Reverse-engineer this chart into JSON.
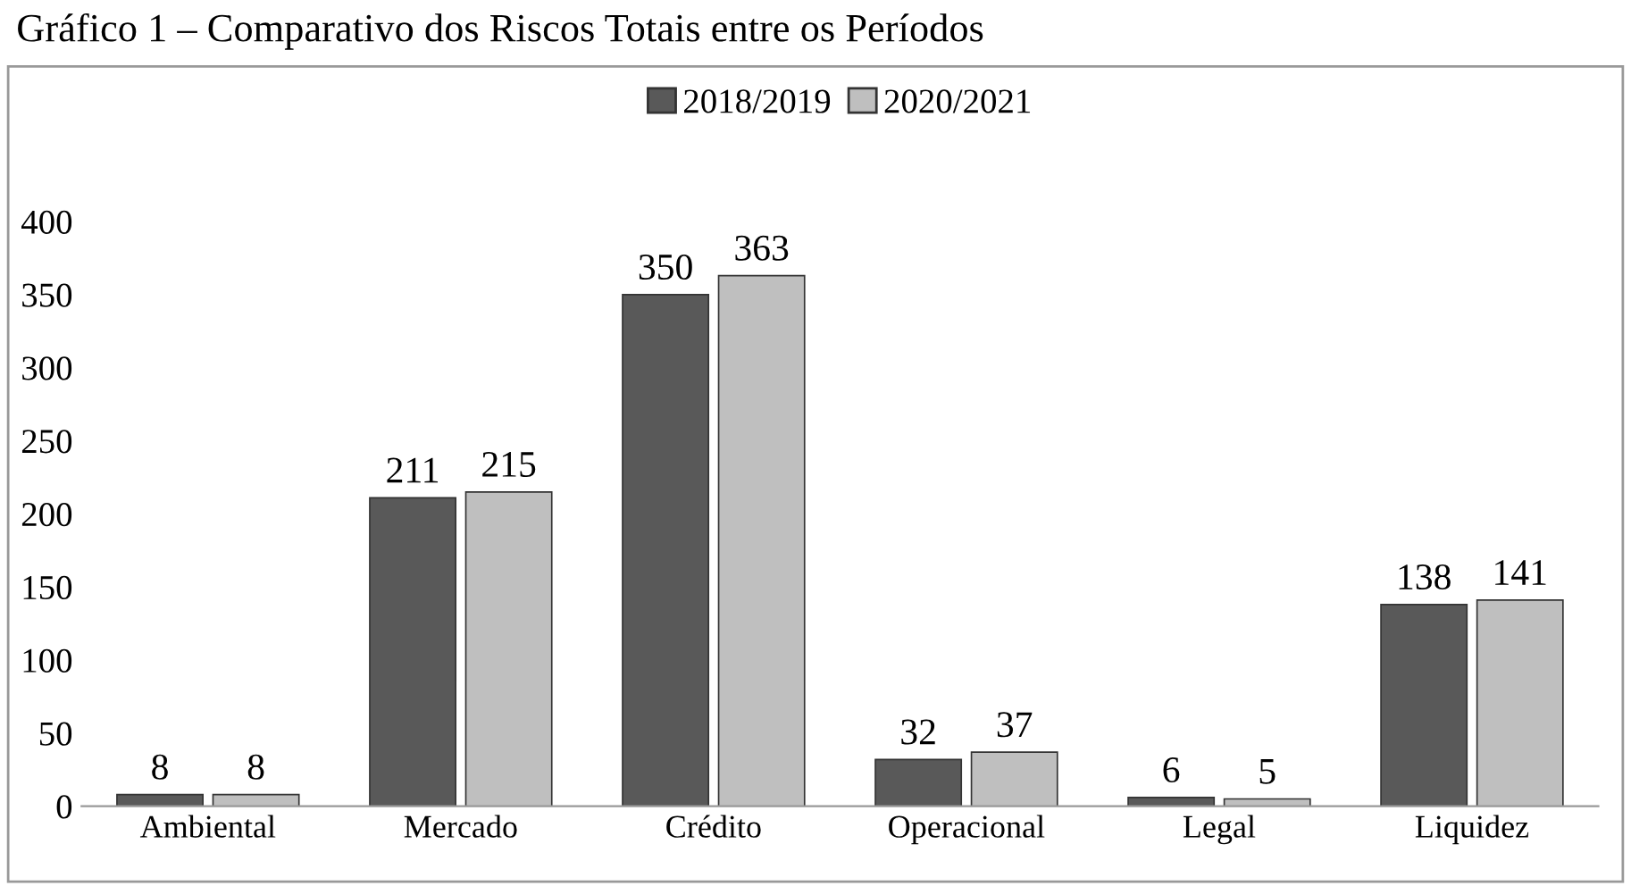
{
  "chart_data": {
    "type": "bar",
    "title": "Gráfico 1 – Comparativo dos Riscos Totais entre os Períodos",
    "categories": [
      "Ambiental",
      "Mercado",
      "Crédito",
      "Operacional",
      "Legal",
      "Liquidez"
    ],
    "series": [
      {
        "name": "2018/2019",
        "color": "#595959",
        "values": [
          8,
          211,
          350,
          32,
          6,
          138
        ]
      },
      {
        "name": "2020/2021",
        "color": "#bfbfbf",
        "values": [
          8,
          215,
          363,
          37,
          5,
          141
        ]
      }
    ],
    "ylim": [
      0,
      400
    ],
    "yticks": [
      0,
      50,
      100,
      150,
      200,
      250,
      300,
      350,
      400
    ],
    "grid": false,
    "legend": "top",
    "data_labels": true
  }
}
